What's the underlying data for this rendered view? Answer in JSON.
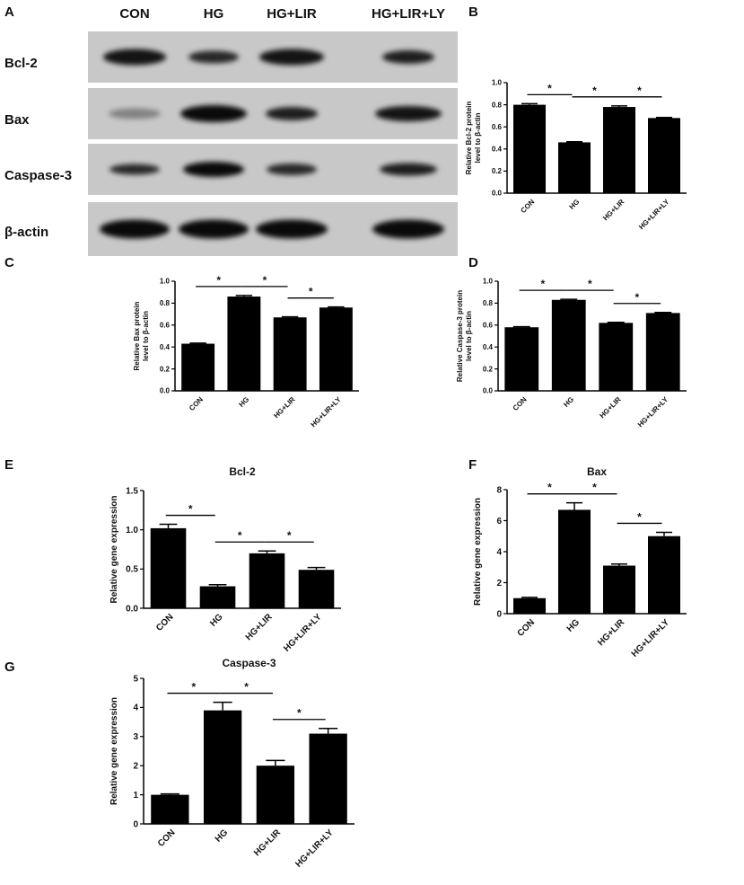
{
  "blot": {
    "panel": "A",
    "lanes": [
      "CON",
      "HG",
      "HG+LIR",
      "HG+LIR+LY"
    ],
    "rows": [
      "Bcl-2",
      "Bax",
      "Caspase-3",
      "β-actin"
    ]
  },
  "chart_data": [
    {
      "type": "bar",
      "panel": "B",
      "ylabel": [
        "Relative Bcl-2 protein",
        "level to β-actin"
      ],
      "categories": [
        "CON",
        "HG",
        "HG+LIR",
        "HG+LIR+LY"
      ],
      "values": [
        0.8,
        0.46,
        0.78,
        0.68
      ],
      "errors": [
        0.01,
        0.005,
        0.01,
        0.005
      ],
      "color": "#000000",
      "ylim": [
        0,
        1
      ],
      "yticks": [
        {
          "value": 0,
          "label": "0.0"
        },
        0.2,
        0.4,
        0.6,
        0.8,
        {
          "value": 1,
          "label": "1.0"
        }
      ],
      "significance": {
        "label": "*",
        "pairs": [
          [
            0,
            1
          ],
          [
            1,
            2
          ],
          [
            2,
            3
          ]
        ]
      }
    },
    {
      "type": "bar",
      "panel": "C",
      "ylabel": [
        "Relative Bax protein",
        "level to β-actin"
      ],
      "categories": [
        "CON",
        "HG",
        "HG+LIR",
        "HG+LIR+LY"
      ],
      "values": [
        0.43,
        0.86,
        0.67,
        0.76
      ],
      "errors": [
        0.005,
        0.01,
        0.005,
        0.005
      ],
      "color": "#000000",
      "ylim": [
        0,
        1
      ],
      "yticks": [
        {
          "value": 0,
          "label": "0.0"
        },
        0.2,
        0.4,
        0.6,
        0.8,
        {
          "value": 1,
          "label": "1.0"
        }
      ],
      "significance": {
        "label": "*",
        "pairs": [
          [
            0,
            1
          ],
          [
            1,
            2
          ],
          [
            2,
            3
          ]
        ]
      }
    },
    {
      "type": "bar",
      "panel": "D",
      "ylabel": [
        "Relative Caspase-3 protein",
        "level to β-actin"
      ],
      "categories": [
        "CON",
        "HG",
        "HG+LIR",
        "HG+LIR+LY"
      ],
      "values": [
        0.58,
        0.83,
        0.62,
        0.71
      ],
      "errors": [
        0.005,
        0.005,
        0.005,
        0.005
      ],
      "color": "#000000",
      "ylim": [
        0,
        1
      ],
      "yticks": [
        {
          "value": 0,
          "label": "0.0"
        },
        0.2,
        0.4,
        0.6,
        0.8,
        {
          "value": 1,
          "label": "1.0"
        }
      ],
      "significance": {
        "label": "*",
        "pairs": [
          [
            0,
            1
          ],
          [
            1,
            2
          ],
          [
            2,
            3
          ]
        ]
      }
    },
    {
      "type": "bar",
      "panel": "E",
      "title": "Bcl-2",
      "ylabel": [
        "Relative gene expression"
      ],
      "categories": [
        "CON",
        "HG",
        "HG+LIR",
        "HG+LIR+LY"
      ],
      "values": [
        1.02,
        0.28,
        0.7,
        0.49
      ],
      "errors": [
        0.05,
        0.02,
        0.03,
        0.03
      ],
      "color": "#000000",
      "ylim": [
        0,
        1.5
      ],
      "yticks": [
        {
          "value": 0,
          "label": "0.0"
        },
        0.5,
        {
          "value": 1,
          "label": "1.0"
        },
        1.5
      ],
      "significance": {
        "label": "*",
        "pairs": [
          [
            0,
            1
          ],
          [
            1,
            2
          ],
          [
            2,
            3
          ]
        ]
      }
    },
    {
      "type": "bar",
      "panel": "F",
      "title": "Bax",
      "ylabel": [
        "Relative gene expression"
      ],
      "categories": [
        "CON",
        "HG",
        "HG+LIR",
        "HG+LIR+LY"
      ],
      "values": [
        1.0,
        6.7,
        3.1,
        5.0
      ],
      "errors": [
        0.05,
        0.45,
        0.1,
        0.25
      ],
      "color": "#000000",
      "ylim": [
        0,
        8
      ],
      "yticks": [
        0,
        2,
        4,
        6,
        8
      ],
      "significance": {
        "label": "*",
        "pairs": [
          [
            0,
            1
          ],
          [
            1,
            2
          ],
          [
            2,
            3
          ]
        ]
      }
    },
    {
      "type": "bar",
      "panel": "G",
      "title": "Caspase-3",
      "ylabel": [
        "Relative gene expression"
      ],
      "categories": [
        "CON",
        "HG",
        "HG+LIR",
        "HG+LIR+LY"
      ],
      "values": [
        1.0,
        3.9,
        2.0,
        3.1
      ],
      "errors": [
        0.03,
        0.28,
        0.18,
        0.18
      ],
      "color": "#000000",
      "ylim": [
        0,
        5
      ],
      "yticks": [
        0,
        1,
        2,
        3,
        4,
        5
      ],
      "significance": {
        "label": "*",
        "pairs": [
          [
            0,
            1
          ],
          [
            1,
            2
          ],
          [
            2,
            3
          ]
        ]
      }
    }
  ]
}
